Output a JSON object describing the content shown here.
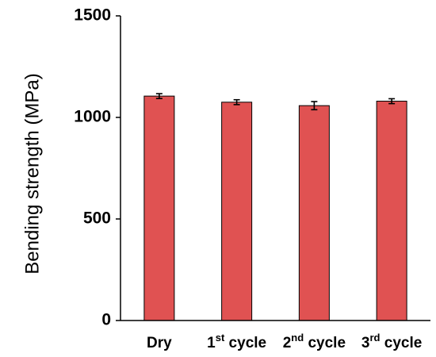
{
  "chart_data": {
    "type": "bar",
    "categories": [
      {
        "base": "Dry",
        "sup": "",
        "rest": ""
      },
      {
        "base": "1",
        "sup": "st",
        "rest": " cycle"
      },
      {
        "base": "2",
        "sup": "nd",
        "rest": " cycle"
      },
      {
        "base": "3",
        "sup": "rd",
        "rest": " cycle"
      }
    ],
    "values": [
      1105,
      1075,
      1058,
      1080
    ],
    "errors": [
      12,
      12,
      20,
      12
    ],
    "ylabel": "Bending strength (MPa)",
    "xlabel": "",
    "ylim": [
      0,
      1500
    ],
    "yticks": [
      0,
      500,
      1000,
      1500
    ],
    "grid": false,
    "bar_color": "#e05252",
    "bar_edge_color": "#000000"
  }
}
